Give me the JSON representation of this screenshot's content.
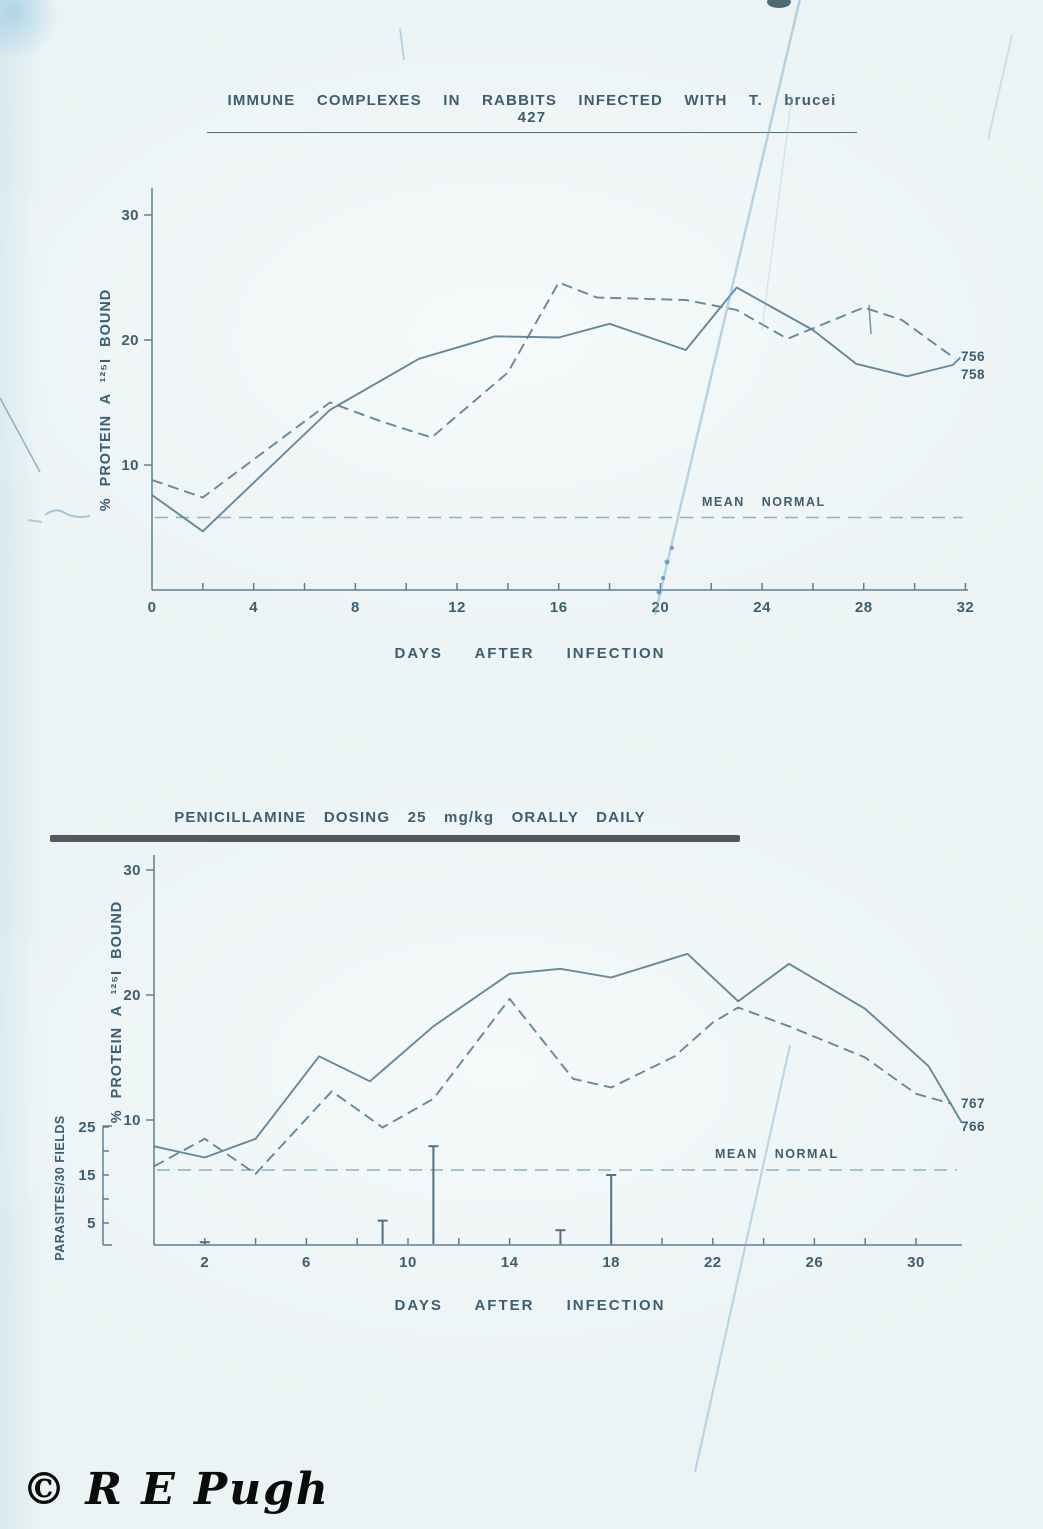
{
  "watermark": "© R E Pugh",
  "chart_data": [
    {
      "type": "line",
      "title": "IMMUNE COMPLEXES IN RABBITS INFECTED WITH T. brucei 427",
      "xlabel": "DAYS AFTER INFECTION",
      "ylabel": "% PROTEIN A ¹²⁵I BOUND",
      "xlim": [
        0,
        32
      ],
      "ylim": [
        0,
        32
      ],
      "xticks_labeled": [
        0,
        4,
        8,
        12,
        16,
        20,
        24,
        28,
        32
      ],
      "xtick_minor_step": 2,
      "yticks": [
        10,
        20,
        30
      ],
      "grid": false,
      "legend_position": "line-end-labels",
      "mean_normal": {
        "label": "MEAN NORMAL",
        "value": 5.8
      },
      "series": [
        {
          "name": "756",
          "line_style": "dashed",
          "points": [
            [
              0,
              8.8
            ],
            [
              2,
              7.4
            ],
            [
              7,
              15.0
            ],
            [
              9,
              13.5
            ],
            [
              11,
              12.2
            ],
            [
              14,
              17.4
            ],
            [
              16,
              24.6
            ],
            [
              17.5,
              23.4
            ],
            [
              21,
              23.2
            ],
            [
              23,
              22.4
            ],
            [
              25,
              20.1
            ],
            [
              28,
              22.6
            ],
            [
              29.5,
              21.6
            ],
            [
              31.6,
              18.5
            ]
          ]
        },
        {
          "name": "758",
          "line_style": "solid",
          "points": [
            [
              0,
              7.6
            ],
            [
              2,
              4.7
            ],
            [
              7,
              14.4
            ],
            [
              10.5,
              18.5
            ],
            [
              13.5,
              20.3
            ],
            [
              16,
              20.2
            ],
            [
              18,
              21.3
            ],
            [
              21,
              19.2
            ],
            [
              23,
              24.2
            ],
            [
              26,
              20.8
            ],
            [
              27.7,
              18.1
            ],
            [
              29.7,
              17.1
            ],
            [
              31.5,
              18.0
            ],
            [
              31.8,
              18.6
            ]
          ]
        }
      ]
    },
    {
      "type": "line",
      "title": "PENICILLAMINE DOSING 25 mg/kg ORALLY DAILY",
      "xlabel": "DAYS AFTER INFECTION",
      "ylabel": "% PROTEIN A ¹²⁵I BOUND",
      "ylabel2": "PARASITES/30 FIELDS",
      "xlim": [
        0,
        32
      ],
      "ylim": [
        0,
        32
      ],
      "y2lim": [
        0,
        27
      ],
      "xticks_labeled": [
        2,
        6,
        10,
        14,
        18,
        22,
        26,
        30
      ],
      "xtick_minor_step": 2,
      "yticks": [
        10,
        20,
        30
      ],
      "y2ticks": [
        5,
        15,
        25
      ],
      "grid": false,
      "legend_position": "line-end-labels",
      "mean_normal": {
        "label": "MEAN NORMAL",
        "value": 6.0
      },
      "series": [
        {
          "name": "767",
          "line_style": "dashed",
          "points": [
            [
              0,
              6.3
            ],
            [
              2,
              8.5
            ],
            [
              4,
              5.7
            ],
            [
              7,
              12.3
            ],
            [
              9,
              9.4
            ],
            [
              11,
              11.7
            ],
            [
              14,
              19.7
            ],
            [
              16.5,
              13.3
            ],
            [
              18,
              12.6
            ],
            [
              20.5,
              15.1
            ],
            [
              22,
              17.8
            ],
            [
              23,
              19.0
            ],
            [
              25,
              17.5
            ],
            [
              28,
              15.0
            ],
            [
              30,
              12.1
            ],
            [
              31.4,
              11.3
            ]
          ]
        },
        {
          "name": "766",
          "line_style": "solid",
          "points": [
            [
              0,
              7.9
            ],
            [
              2,
              7.0
            ],
            [
              4,
              8.5
            ],
            [
              6.5,
              15.1
            ],
            [
              8.5,
              13.1
            ],
            [
              11,
              17.5
            ],
            [
              14,
              21.7
            ],
            [
              16,
              22.1
            ],
            [
              18,
              21.4
            ],
            [
              21,
              23.3
            ],
            [
              23,
              19.5
            ],
            [
              25,
              22.5
            ],
            [
              28,
              18.9
            ],
            [
              30.5,
              14.3
            ],
            [
              31.8,
              9.8
            ]
          ]
        }
      ],
      "parasite_bars": {
        "unit": "parasites per 30 fields",
        "points": [
          [
            2,
            1
          ],
          [
            9,
            5.5
          ],
          [
            11,
            21
          ],
          [
            16,
            3.5
          ],
          [
            18,
            15
          ]
        ]
      }
    }
  ]
}
